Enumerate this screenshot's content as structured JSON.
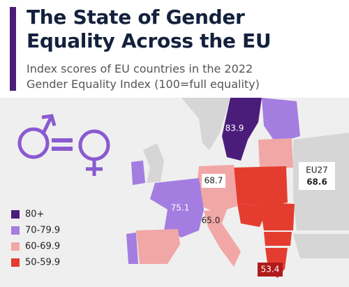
{
  "title_lines": [
    "The State of Gender",
    "Equality Across the EU"
  ],
  "subtitle_lines": [
    "Index scores of EU countries in the 2022",
    "Gender Equality Index (100=full equality)"
  ],
  "legend": [
    {
      "label": "80+",
      "color": "#4b1d7a"
    },
    {
      "label": "70-79.9",
      "color": "#a47de0"
    },
    {
      "label": "60-69.9",
      "color": "#f2a7a7"
    },
    {
      "label": "50-59.9",
      "color": "#e43d2f"
    }
  ],
  "map_labels": [
    "83.9",
    "68.7",
    "75.1",
    "65.0",
    "53.4"
  ],
  "eu_box": {
    "label": "EU27",
    "value": "68.6"
  }
}
